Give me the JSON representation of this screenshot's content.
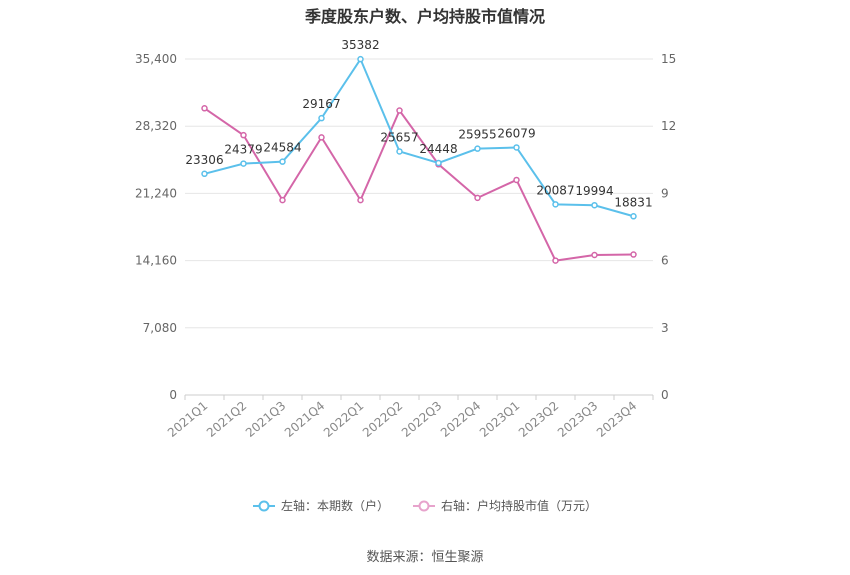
{
  "chart_data": {
    "type": "line",
    "title": "季度股东户数、户均持股市值情况",
    "categories": [
      "2021Q1",
      "2021Q2",
      "2021Q3",
      "2021Q4",
      "2022Q1",
      "2022Q2",
      "2022Q3",
      "2022Q4",
      "2023Q1",
      "2023Q2",
      "2023Q3",
      "2023Q4"
    ],
    "left_axis": {
      "min": 0,
      "max": 35400,
      "ticks": [
        "0",
        "7,080",
        "14,160",
        "21,240",
        "28,320",
        "35,400"
      ]
    },
    "right_axis": {
      "min": 0,
      "max": 15,
      "ticks": [
        "0",
        "3",
        "6",
        "9",
        "12",
        "15"
      ]
    },
    "grid": true,
    "legend_position": "bottom",
    "series": [
      {
        "name": "左轴：本期数（户）",
        "axis": "left",
        "color": "#5bc0eb",
        "values": [
          23306,
          24379,
          24584,
          29167,
          35382,
          25657,
          24448,
          25955,
          26079,
          20087,
          19994,
          18831
        ],
        "labels": [
          "23306",
          "24379",
          "24584",
          "29167",
          "35382",
          "25657",
          "24448",
          "25955",
          "26079",
          "20087",
          "19994",
          "18831"
        ]
      },
      {
        "name": "右轴：户均持股市值（万元）",
        "axis": "right",
        "color": "#d466a8",
        "values": [
          12.8,
          11.6,
          8.7,
          11.5,
          8.7,
          12.7,
          10.3,
          8.8,
          9.6,
          6.0,
          6.25,
          6.27
        ]
      }
    ],
    "source": "数据来源：恒生聚源"
  }
}
